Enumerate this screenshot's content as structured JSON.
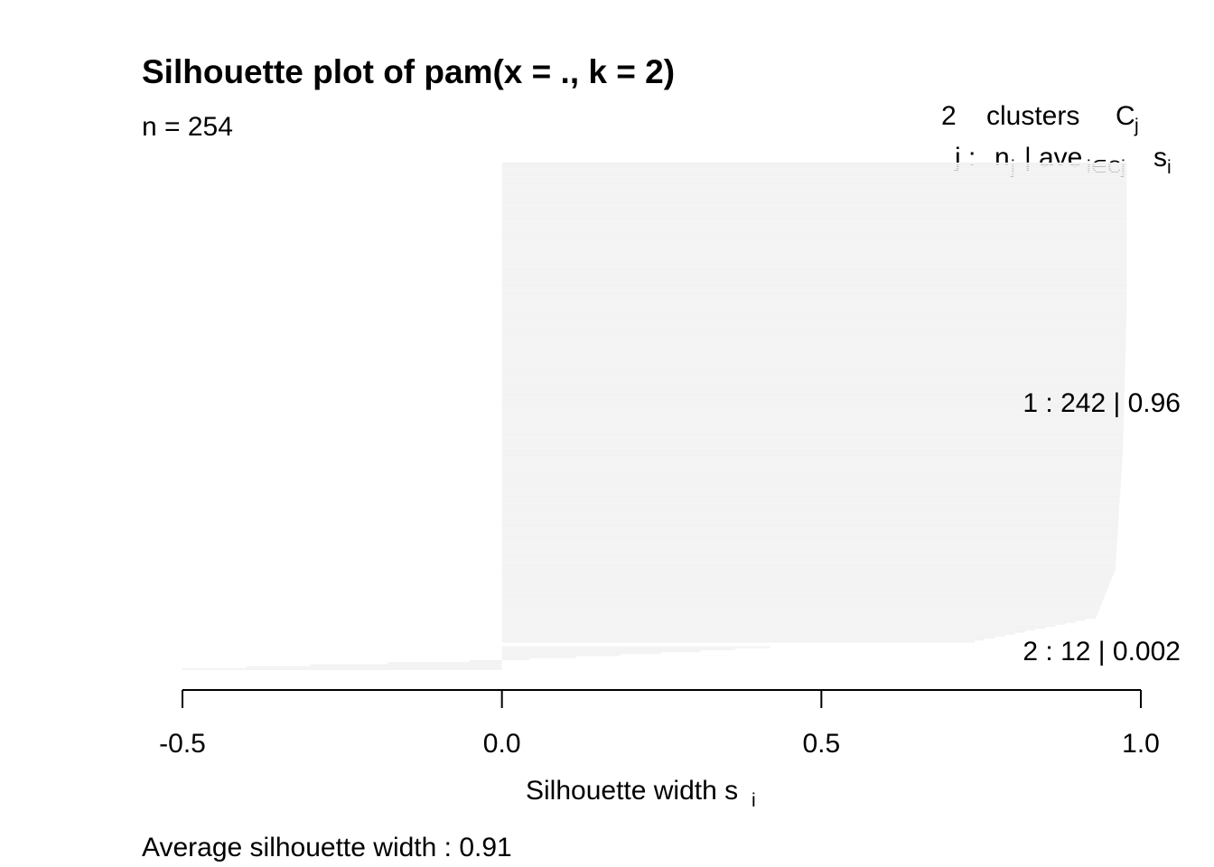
{
  "chart_data": {
    "type": "bar",
    "orientation": "horizontal",
    "title": "Silhouette plot of pam(x = ., k = 2)",
    "n_label": "n = 254",
    "header": {
      "line1_count": "2",
      "line1_text": "clusters",
      "line1_symbol": "C",
      "line1_symbol_sub": "j",
      "line2_j": "j :",
      "line2_n": "n",
      "line2_n_sub": "j",
      "line2_sep": "|",
      "line2_ave": "ave",
      "line2_ave_sub": "i∈Cj",
      "line2_s": "s",
      "line2_s_sub": "i"
    },
    "xlabel": "Silhouette width s",
    "xlabel_sub": "i",
    "xlim": [
      -0.5,
      1.0
    ],
    "xticks": [
      "-0.5",
      "0.0",
      "0.5",
      "1.0"
    ],
    "bar_color": "#f2f2f2",
    "footer": "Average silhouette width :  0.91",
    "clusters": [
      {
        "label": "1 :   242  |  0.96",
        "j": 1,
        "size": 242,
        "avg_width": 0.96,
        "width_profile": [
          [
            0.0,
            0.978
          ],
          [
            0.3,
            0.978
          ],
          [
            0.6,
            0.972
          ],
          [
            0.85,
            0.96
          ],
          [
            0.95,
            0.93
          ],
          [
            1.0,
            0.74
          ]
        ]
      },
      {
        "label": "2 :   12  |  0.002",
        "j": 2,
        "size": 12,
        "avg_width": 0.002,
        "width_profile": [
          [
            0.0,
            0.42
          ],
          [
            0.2,
            0.3
          ],
          [
            0.4,
            0.16
          ],
          [
            0.6,
            0.0
          ],
          [
            0.8,
            -0.28
          ],
          [
            1.0,
            -0.5
          ]
        ]
      }
    ]
  }
}
